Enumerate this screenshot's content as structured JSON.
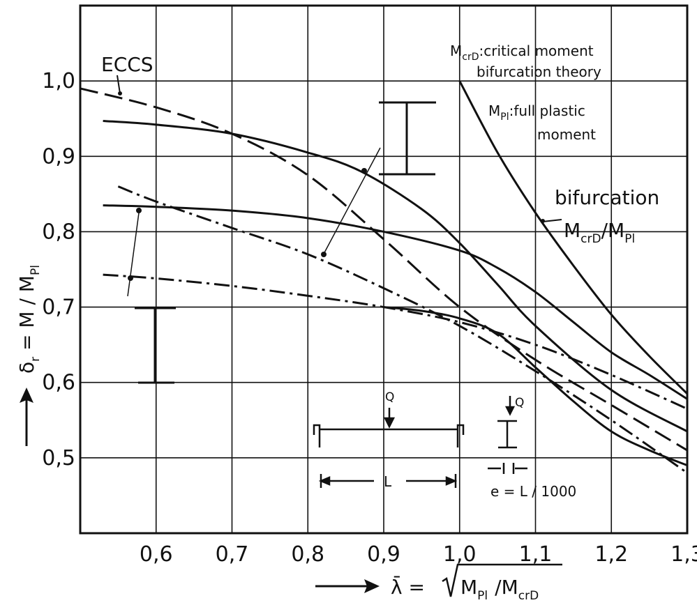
{
  "chart_data": {
    "type": "line",
    "x_axis": {
      "min": 0.5,
      "max": 1.3,
      "ticks": [
        0.6,
        0.7,
        0.8,
        0.9,
        1.0,
        1.1,
        1.2,
        1.3
      ],
      "tick_labels": [
        "0,6",
        "0,7",
        "0,8",
        "0,9",
        "1,0",
        "1,1",
        "1,2",
        "1,3"
      ],
      "label_prefix": "λ̄ =",
      "label_radicand": "M",
      "label_sub1": "Pl",
      "label_mid": "/M",
      "label_sub2": "crD",
      "arrow": "→"
    },
    "y_axis": {
      "min": 0.4,
      "max": 1.1,
      "ticks": [
        0.5,
        0.6,
        0.7,
        0.8,
        0.9,
        1.0
      ],
      "tick_labels": [
        "0,5",
        "0,6",
        "0,7",
        "0,8",
        "0,9",
        "1,0"
      ],
      "label": "δr = M / MPl",
      "label_main": "δ",
      "label_sub": "r",
      "label_rest": " = M / M",
      "label_sub2": "Pl",
      "arrow": "→"
    },
    "grid": true,
    "series": [
      {
        "name": "ECCS",
        "style": "dashed",
        "x": [
          0.5,
          0.6,
          0.7,
          0.8,
          0.9,
          1.0,
          1.1,
          1.2,
          1.3
        ],
        "y": [
          0.99,
          0.965,
          0.93,
          0.875,
          0.79,
          0.7,
          0.63,
          0.57,
          0.51
        ]
      },
      {
        "name": "bifurcation",
        "style": "solid",
        "x": [
          1.0,
          1.05,
          1.1,
          1.15,
          1.2,
          1.25,
          1.3
        ],
        "y": [
          1.0,
          0.905,
          0.825,
          0.755,
          0.69,
          0.635,
          0.585
        ]
      },
      {
        "style": "solid",
        "x": [
          0.53,
          0.6,
          0.7,
          0.8,
          0.87,
          0.95,
          1.0,
          1.05,
          1.1,
          1.2,
          1.3
        ],
        "y": [
          0.947,
          0.942,
          0.93,
          0.905,
          0.88,
          0.83,
          0.785,
          0.73,
          0.675,
          0.59,
          0.535
        ]
      },
      {
        "style": "solid",
        "x": [
          0.53,
          0.6,
          0.7,
          0.8,
          0.9,
          1.0,
          1.05,
          1.1,
          1.15,
          1.2,
          1.25,
          1.3
        ],
        "y": [
          0.835,
          0.833,
          0.828,
          0.818,
          0.8,
          0.775,
          0.752,
          0.72,
          0.68,
          0.64,
          0.61,
          0.578
        ]
      },
      {
        "style": "dashdot",
        "x": [
          0.55,
          0.6,
          0.7,
          0.8,
          0.9,
          1.0,
          1.1,
          1.2,
          1.3
        ],
        "y": [
          0.86,
          0.84,
          0.805,
          0.77,
          0.725,
          0.675,
          0.615,
          0.55,
          0.48
        ]
      },
      {
        "style": "dashdot",
        "x": [
          0.53,
          0.6,
          0.7,
          0.8,
          0.9,
          1.0,
          1.1,
          1.2,
          1.3
        ],
        "y": [
          0.743,
          0.738,
          0.728,
          0.715,
          0.7,
          0.68,
          0.65,
          0.61,
          0.565
        ]
      },
      {
        "style": "solid",
        "x": [
          0.9,
          0.95,
          1.0,
          1.05,
          1.1,
          1.15,
          1.2,
          1.25,
          1.3
        ],
        "y": [
          0.7,
          0.695,
          0.685,
          0.665,
          0.62,
          0.575,
          0.535,
          0.51,
          0.49
        ]
      }
    ],
    "annotations": {
      "eccs": "ECCS",
      "mcrd_sym": "M",
      "mcrd_sub": "crD",
      "mcrd_text": ":critical moment",
      "mcrd_text2": "bifurcation theory",
      "mpl_sym": "M",
      "mpl_sub": "Pl",
      "mpl_text": ":full plastic",
      "mpl_text2": "moment",
      "bifurcation": "bifurcation",
      "bif_sym1": "M",
      "bif_sub1": "crD",
      "bif_mid": "/M",
      "bif_sub2": "Pl",
      "q1": "Q",
      "q2": "Q",
      "span": "L",
      "ecc": "e = L / 1000"
    }
  }
}
